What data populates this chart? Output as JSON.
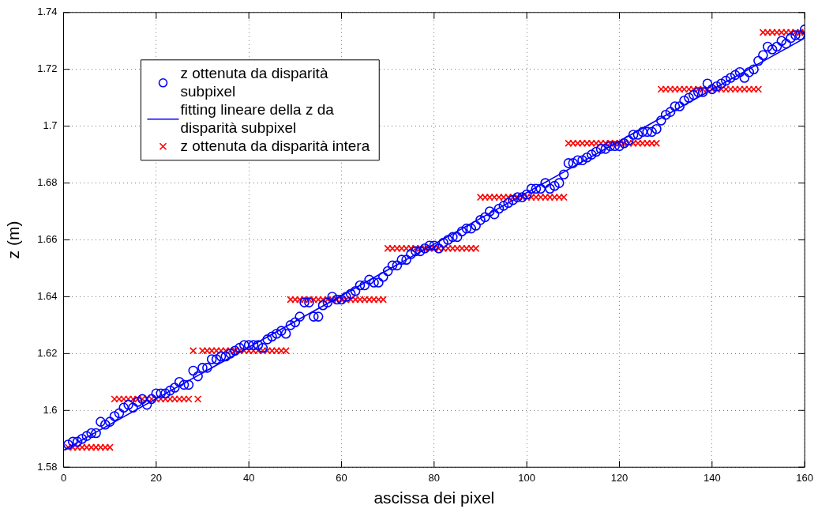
{
  "chart_data": {
    "type": "scatter",
    "xlabel": "ascissa dei pixel",
    "ylabel": "z (m)",
    "x": [
      1,
      2,
      3,
      4,
      5,
      6,
      7,
      8,
      9,
      10,
      11,
      12,
      13,
      14,
      15,
      16,
      17,
      18,
      19,
      20,
      21,
      22,
      23,
      24,
      25,
      26,
      27,
      28,
      29,
      30,
      31,
      32,
      33,
      34,
      35,
      36,
      37,
      38,
      39,
      40,
      41,
      42,
      43,
      44,
      45,
      46,
      47,
      48,
      49,
      50,
      51,
      52,
      53,
      54,
      55,
      56,
      57,
      58,
      59,
      60,
      61,
      62,
      63,
      64,
      65,
      66,
      67,
      68,
      69,
      70,
      71,
      72,
      73,
      74,
      75,
      76,
      77,
      78,
      79,
      80,
      81,
      82,
      83,
      84,
      85,
      86,
      87,
      88,
      89,
      90,
      91,
      92,
      93,
      94,
      95,
      96,
      97,
      98,
      99,
      100,
      101,
      102,
      103,
      104,
      105,
      106,
      107,
      108,
      109,
      110,
      111,
      112,
      113,
      114,
      115,
      116,
      117,
      118,
      119,
      120,
      121,
      122,
      123,
      124,
      125,
      126,
      127,
      128,
      129,
      130,
      131,
      132,
      133,
      134,
      135,
      136,
      137,
      138,
      139,
      140,
      141,
      142,
      143,
      144,
      145,
      146,
      147,
      148,
      149,
      150,
      151,
      152,
      153,
      154,
      155,
      156,
      157,
      158,
      159,
      160
    ],
    "series": [
      {
        "name": "z ottenuta da disparità subpixel",
        "color": "#0000ff",
        "marker": "circle",
        "values": [
          1.588,
          1.589,
          1.589,
          1.59,
          1.591,
          1.592,
          1.592,
          1.596,
          1.595,
          1.596,
          1.598,
          1.599,
          1.601,
          1.602,
          1.601,
          1.603,
          1.604,
          1.602,
          1.604,
          1.606,
          1.606,
          1.606,
          1.607,
          1.608,
          1.61,
          1.609,
          1.609,
          1.614,
          1.612,
          1.615,
          1.615,
          1.618,
          1.618,
          1.619,
          1.619,
          1.62,
          1.621,
          1.622,
          1.623,
          1.623,
          1.623,
          1.623,
          1.622,
          1.625,
          1.626,
          1.627,
          1.628,
          1.627,
          1.63,
          1.631,
          1.633,
          1.638,
          1.638,
          1.633,
          1.633,
          1.637,
          1.638,
          1.64,
          1.639,
          1.639,
          1.64,
          1.641,
          1.642,
          1.644,
          1.644,
          1.646,
          1.645,
          1.645,
          1.647,
          1.649,
          1.651,
          1.651,
          1.653,
          1.653,
          1.655,
          1.656,
          1.656,
          1.657,
          1.658,
          1.658,
          1.657,
          1.659,
          1.66,
          1.661,
          1.661,
          1.663,
          1.664,
          1.664,
          1.665,
          1.667,
          1.668,
          1.67,
          1.669,
          1.671,
          1.672,
          1.673,
          1.674,
          1.675,
          1.675,
          1.676,
          1.678,
          1.678,
          1.678,
          1.68,
          1.678,
          1.679,
          1.68,
          1.683,
          1.687,
          1.687,
          1.688,
          1.688,
          1.689,
          1.69,
          1.691,
          1.692,
          1.692,
          1.693,
          1.693,
          1.693,
          1.694,
          1.695,
          1.697,
          1.697,
          1.698,
          1.698,
          1.698,
          1.699,
          1.702,
          1.704,
          1.705,
          1.707,
          1.707,
          1.709,
          1.71,
          1.711,
          1.712,
          1.712,
          1.715,
          1.713,
          1.714,
          1.715,
          1.716,
          1.717,
          1.718,
          1.719,
          1.717,
          1.719,
          1.72,
          1.723,
          1.725,
          1.728,
          1.727,
          1.728,
          1.73,
          1.729,
          1.731,
          1.732,
          1.732,
          1.734
        ]
      },
      {
        "name": "fitting lineare della z da disparità subpixel",
        "type": "line",
        "color": "#0000ff",
        "marker": "none",
        "x": [
          0,
          160
        ],
        "values": [
          1.586,
          1.731
        ]
      },
      {
        "name": "z ottenuta da disparità intera",
        "color": "#ff0000",
        "marker": "cross",
        "values": [
          1.587,
          1.587,
          1.587,
          1.587,
          1.587,
          1.587,
          1.587,
          1.587,
          1.587,
          1.587,
          1.604,
          1.604,
          1.604,
          1.604,
          1.604,
          1.604,
          1.604,
          1.604,
          1.604,
          1.604,
          1.604,
          1.604,
          1.604,
          1.604,
          1.604,
          1.604,
          1.604,
          1.621,
          1.604,
          1.621,
          1.621,
          1.621,
          1.621,
          1.621,
          1.621,
          1.621,
          1.621,
          1.621,
          1.621,
          1.621,
          1.621,
          1.621,
          1.621,
          1.621,
          1.621,
          1.621,
          1.621,
          1.621,
          1.639,
          1.639,
          1.639,
          1.639,
          1.639,
          1.639,
          1.639,
          1.639,
          1.639,
          1.639,
          1.639,
          1.639,
          1.639,
          1.639,
          1.639,
          1.639,
          1.639,
          1.639,
          1.639,
          1.639,
          1.639,
          1.657,
          1.657,
          1.657,
          1.657,
          1.657,
          1.657,
          1.657,
          1.657,
          1.657,
          1.657,
          1.657,
          1.657,
          1.657,
          1.657,
          1.657,
          1.657,
          1.657,
          1.657,
          1.657,
          1.657,
          1.675,
          1.675,
          1.675,
          1.675,
          1.675,
          1.675,
          1.675,
          1.675,
          1.675,
          1.675,
          1.675,
          1.675,
          1.675,
          1.675,
          1.675,
          1.675,
          1.675,
          1.675,
          1.675,
          1.694,
          1.694,
          1.694,
          1.694,
          1.694,
          1.694,
          1.694,
          1.694,
          1.694,
          1.694,
          1.694,
          1.694,
          1.694,
          1.694,
          1.694,
          1.694,
          1.694,
          1.694,
          1.694,
          1.694,
          1.713,
          1.713,
          1.713,
          1.713,
          1.713,
          1.713,
          1.713,
          1.713,
          1.713,
          1.713,
          1.713,
          1.713,
          1.713,
          1.713,
          1.713,
          1.713,
          1.713,
          1.713,
          1.713,
          1.713,
          1.713,
          1.713,
          1.733,
          1.733,
          1.733,
          1.733,
          1.733,
          1.733,
          1.733,
          1.733,
          1.733,
          1.733
        ]
      }
    ],
    "xlim": [
      0,
      160
    ],
    "xticks": [
      0,
      20,
      40,
      60,
      80,
      100,
      120,
      140,
      160
    ],
    "ylim": [
      1.58,
      1.74
    ],
    "yticks": [
      1.58,
      1.6,
      1.62,
      1.64,
      1.66,
      1.68,
      1.7,
      1.72,
      1.74
    ],
    "grid": true,
    "legend": "top left"
  }
}
